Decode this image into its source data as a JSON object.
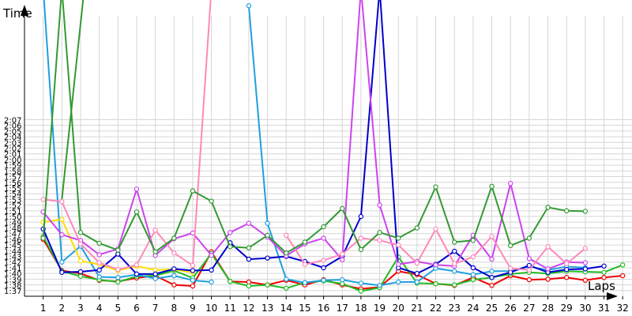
{
  "chart_data": {
    "type": "line",
    "title": "",
    "xlabel": "Laps",
    "ylabel": "Time",
    "grid": true,
    "legend": "none",
    "x": [
      1,
      2,
      3,
      4,
      5,
      6,
      7,
      8,
      9,
      10,
      11,
      12,
      13,
      14,
      15,
      16,
      17,
      18,
      19,
      20,
      21,
      22,
      23,
      24,
      25,
      26,
      27,
      28,
      29,
      30,
      31,
      32
    ],
    "xlim": [
      0,
      32.5
    ],
    "ylim": [
      96,
      148
    ],
    "y_tick_values": [
      97,
      98,
      99,
      100,
      101,
      102,
      103,
      104,
      105,
      106,
      107,
      108,
      109,
      110,
      111,
      112,
      113,
      114,
      115,
      116,
      117,
      118,
      119,
      120,
      121,
      122,
      123,
      124,
      125,
      126,
      127
    ],
    "y_tick_labels": [
      "1:37",
      "1:38",
      "1:39",
      "1:40",
      "1:41",
      "1:42",
      "1:43",
      "1:44",
      "1:45",
      "1:46",
      "1:47",
      "1:48",
      "1:49",
      "1:50",
      "1:51",
      "1:52",
      "1:53",
      "1:54",
      "1:55",
      "1:56",
      "1:57",
      "1:58",
      "1:59",
      "2:00",
      "2:01",
      "2:02",
      "2:03",
      "2:04",
      "2:05",
      "2:06",
      "2:07"
    ],
    "x_tick_labels": [
      "1",
      "2",
      "3",
      "4",
      "5",
      "6",
      "7",
      "8",
      "9",
      "10",
      "11",
      "12",
      "13",
      "14",
      "15",
      "16",
      "17",
      "18",
      "19",
      "20",
      "21",
      "22",
      "23",
      "24",
      "25",
      "26",
      "27",
      "28",
      "29",
      "30",
      "31",
      "32"
    ],
    "series": [
      {
        "color": "#ee0000",
        "values": [
          106,
          100.5,
          100,
          98.8,
          98.6,
          99.2,
          99.6,
          98,
          97.8,
          103.8,
          98.6,
          98.5,
          98,
          98.8,
          98,
          98.9,
          98,
          97.3,
          97.6,
          100.4,
          99.8,
          98.2,
          97.9,
          99.3,
          97.9,
          99.6,
          98.9,
          99,
          99.3,
          98.8,
          99.3,
          99.6
        ]
      },
      {
        "color": "#22bb22",
        "values": [
          106.5,
          100.4,
          99.5,
          98.9,
          98.5,
          99.5,
          99.6,
          100.5,
          99.2,
          103.5,
          98.6,
          97.8,
          98,
          97.4,
          98.4,
          98.7,
          98.2,
          96.9,
          97.5,
          102.9,
          98.3,
          98.2,
          98,
          98.9,
          99.3,
          99.9,
          100.2,
          100,
          100.4,
          100.3,
          100.2,
          101.5
        ]
      },
      {
        "color": "#1f9fdf",
        "values": [
          150,
          102,
          104.8,
          99.4,
          99.3,
          99.8,
          99.1,
          99.6,
          98.8,
          98.5,
          null,
          147,
          108.8,
          99,
          98.4,
          98.8,
          98.9,
          98.3,
          97.9,
          98.5,
          98.5,
          100.9,
          100.4,
          99.8,
          100.4,
          100.4,
          101.2,
          100.6,
          101.2,
          101,
          null,
          null
        ]
      },
      {
        "color": "#ffdd00",
        "values": [
          109,
          109.5,
          102.2,
          101.6,
          100.5,
          101.3,
          100.6,
          100.7,
          100.2,
          null,
          null,
          null,
          null,
          null,
          null,
          null,
          null,
          null,
          null,
          null,
          null,
          null,
          null,
          null,
          null,
          null,
          null,
          null,
          null,
          null,
          null,
          null
        ]
      },
      {
        "color": "#0000cc",
        "values": [
          107.8,
          100.2,
          100.3,
          100.6,
          103.4,
          99.9,
          99.9,
          100.8,
          100.5,
          100.6,
          105.4,
          102.5,
          102.7,
          103,
          102.1,
          101,
          103,
          110,
          150,
          101,
          100,
          101.6,
          103.9,
          101,
          99.3,
          100.2,
          101.4,
          100.2,
          100.7,
          100.8,
          101.3,
          null
        ]
      },
      {
        "color": "#cc44ee",
        "values": [
          110.8,
          106.8,
          105.8,
          103.3,
          104.3,
          114.8,
          103.2,
          106.1,
          107.1,
          103.2,
          107.2,
          108.8,
          106.4,
          103.1,
          105.2,
          106.2,
          102.4,
          150,
          112,
          101.6,
          102.1,
          101.5,
          101.3,
          106.7,
          102.5,
          115.8,
          102.6,
          100.8,
          102,
          101.9,
          null,
          null
        ]
      },
      {
        "color": "#ff88bb",
        "values": [
          113,
          112.6,
          105.2,
          101.9,
          100.7,
          101.5,
          107.6,
          103.6,
          101.4,
          150,
          null,
          null,
          null,
          106.7,
          101.6,
          102.3,
          103.4,
          106.2,
          105.8,
          105,
          101.8,
          107.8,
          101.7,
          102.9,
          106.5,
          100.9,
          100.6,
          104.7,
          101.7,
          104.4,
          null,
          null
        ]
      },
      {
        "color": "#339933",
        "values": [
          106.2,
          150,
          107.2,
          105.3,
          104.1,
          110.8,
          103.8,
          106.2,
          114.5,
          112.7,
          104.7,
          104.5,
          106.7,
          103.6,
          105.5,
          108.2,
          111.4,
          104.2,
          107.2,
          106.2,
          108,
          115.2,
          105.5,
          105.8,
          115.3,
          104.9,
          106.2,
          111.6,
          111,
          110.9,
          null,
          null
        ]
      }
    ],
    "truncated_series_lines": [
      {
        "color": "#339933",
        "from": [
          2,
          113
        ],
        "to": [
          3.2,
          150
        ]
      }
    ]
  }
}
